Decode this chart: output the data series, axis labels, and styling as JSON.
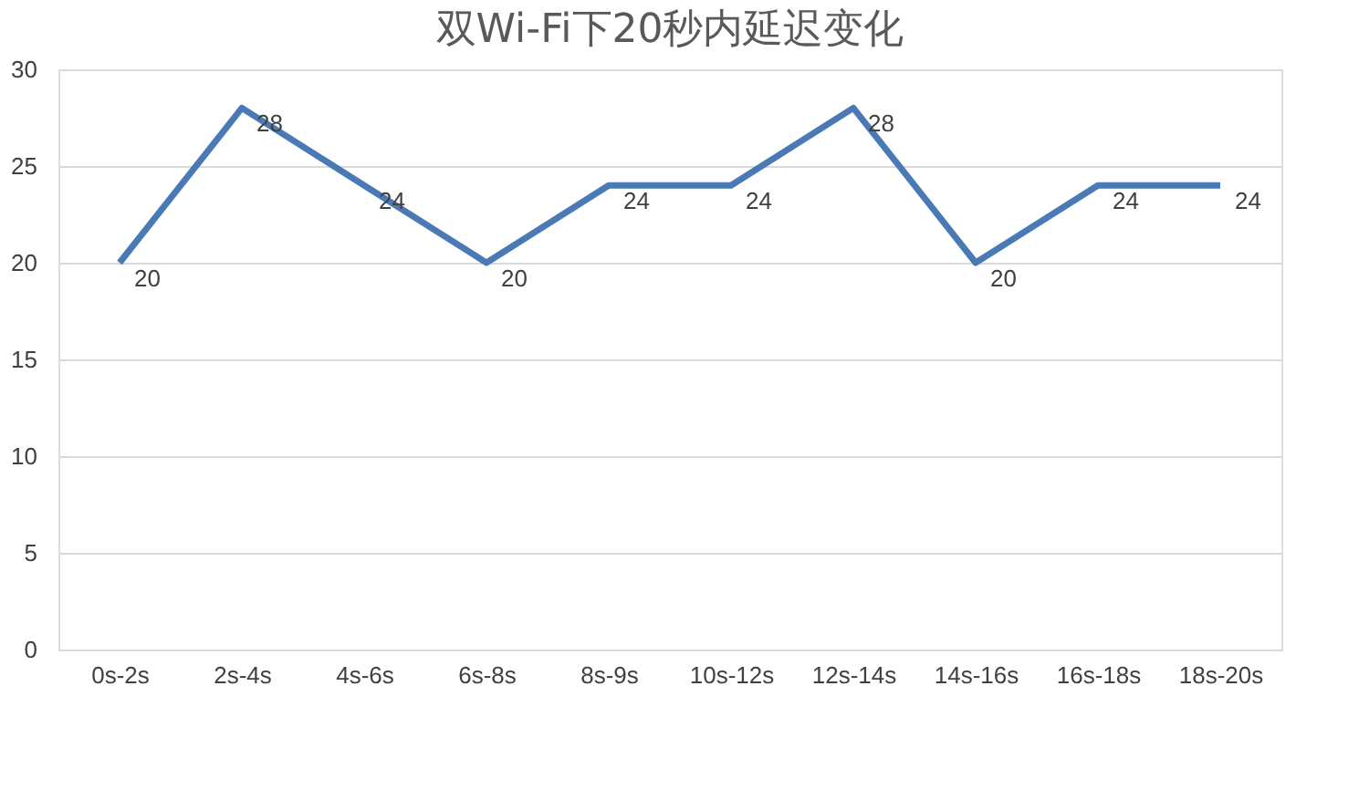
{
  "chart_data": {
    "type": "line",
    "title": "双Wi-Fi下20秒内延迟变化",
    "categories": [
      "0s-2s",
      "2s-4s",
      "4s-6s",
      "6s-8s",
      "8s-9s",
      "10s-12s",
      "12s-14s",
      "14s-16s",
      "16s-18s",
      "18s-20s"
    ],
    "series": [
      {
        "color": "#4a7ab5",
        "values": [
          20,
          28,
          24,
          20,
          24,
          24,
          28,
          20,
          24,
          24
        ]
      }
    ],
    "ylim": [
      0,
      30
    ],
    "yticks": [
      0,
      5,
      10,
      15,
      20,
      25,
      30
    ],
    "grid": "y",
    "data_labels": true,
    "marker": "none",
    "line_style": "solid",
    "legend": false
  }
}
